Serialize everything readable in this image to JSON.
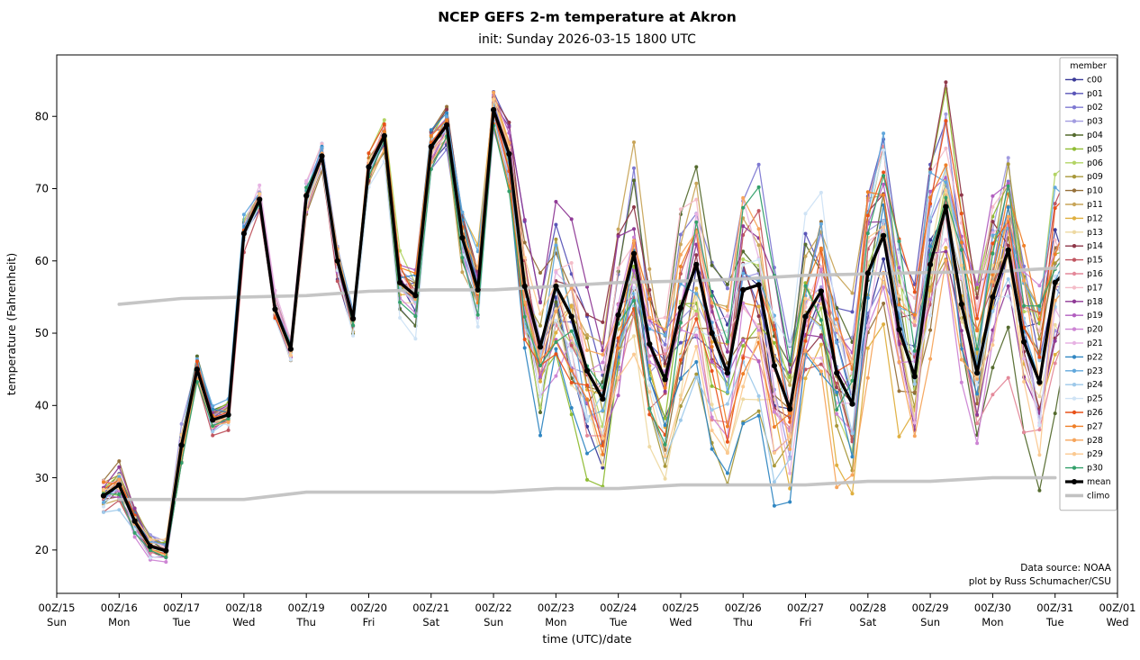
{
  "chart_data": {
    "type": "line",
    "title": "NCEP GEFS 2-m temperature at Akron",
    "subtitle": "init: Sunday 2026-03-15 1800 UTC",
    "xlabel": "time (UTC)/date",
    "ylabel": "temperature (Fahrenheit)",
    "ylim": [
      14,
      88.5
    ],
    "yticks": [
      20,
      30,
      40,
      50,
      60,
      70,
      80
    ],
    "x_axis_range_hours": [
      0,
      408
    ],
    "x_start_hour": 18,
    "x_step_hours": 6,
    "xticks": [
      {
        "top": "00Z/15",
        "bottom": "Sun"
      },
      {
        "top": "00Z/16",
        "bottom": "Mon"
      },
      {
        "top": "00Z/17",
        "bottom": "Tue"
      },
      {
        "top": "00Z/18",
        "bottom": "Wed"
      },
      {
        "top": "00Z/19",
        "bottom": "Thu"
      },
      {
        "top": "00Z/20",
        "bottom": "Fri"
      },
      {
        "top": "00Z/21",
        "bottom": "Sat"
      },
      {
        "top": "00Z/22",
        "bottom": "Sun"
      },
      {
        "top": "00Z/23",
        "bottom": "Mon"
      },
      {
        "top": "00Z/24",
        "bottom": "Tue"
      },
      {
        "top": "00Z/25",
        "bottom": "Wed"
      },
      {
        "top": "00Z/26",
        "bottom": "Thu"
      },
      {
        "top": "00Z/27",
        "bottom": "Fri"
      },
      {
        "top": "00Z/28",
        "bottom": "Sat"
      },
      {
        "top": "00Z/29",
        "bottom": "Sun"
      },
      {
        "top": "00Z/30",
        "bottom": "Mon"
      },
      {
        "top": "00Z/31",
        "bottom": "Tue"
      },
      {
        "top": "00Z/01",
        "bottom": "Wed"
      }
    ],
    "legend_title": "member",
    "annotations": [
      "Data source: NOAA",
      "plot by Russ Schumacher/CSU"
    ],
    "mean": {
      "name": "mean",
      "color": "#000000",
      "values": [
        27.5,
        29.0,
        24.0,
        20.5,
        19.9,
        34.5,
        45.0,
        38.0,
        38.7,
        63.8,
        68.5,
        53.3,
        47.8,
        69.0,
        74.5,
        60.0,
        52.0,
        73.0,
        77.3,
        57.0,
        55.2,
        75.8,
        78.8,
        63.2,
        56.0,
        80.9,
        74.8,
        56.5,
        48.1,
        56.5,
        52.3,
        44.8,
        40.9,
        52.5,
        61.0,
        48.5,
        43.6,
        53.5,
        59.5,
        50.0,
        44.5,
        56.0,
        56.7,
        45.5,
        39.5,
        52.3,
        55.8,
        44.5,
        40.2,
        58.3,
        63.5,
        50.5,
        44.0,
        59.5,
        67.5,
        54.0,
        44.5,
        55.0,
        61.5,
        48.8,
        43.2,
        57.0,
        59.2,
        44.5
      ]
    },
    "climo": {
      "name": "climo",
      "color": "#c2c2c2",
      "day_hours": [
        24,
        48,
        72,
        96,
        120,
        144,
        168,
        192,
        216,
        240,
        264,
        288,
        312,
        336,
        360,
        384
      ],
      "upper": [
        54.0,
        54.8,
        55.0,
        55.2,
        55.8,
        56.0,
        56.0,
        56.5,
        57.0,
        57.2,
        57.5,
        58.0,
        58.2,
        58.4,
        58.5,
        59.0
      ],
      "lower": [
        27.0,
        27.0,
        27.0,
        28.0,
        28.0,
        28.0,
        28.0,
        28.5,
        28.5,
        29.0,
        29.0,
        29.0,
        29.5,
        29.5,
        30.0,
        30.0
      ]
    },
    "spread": [
      2.2,
      2.2,
      2.0,
      1.4,
      1.2,
      1.8,
      1.6,
      1.5,
      1.4,
      1.4,
      1.4,
      1.4,
      1.4,
      1.5,
      1.5,
      1.8,
      1.8,
      1.8,
      1.8,
      2.6,
      3.0,
      2.6,
      2.0,
      3.2,
      3.8,
      2.0,
      3.5,
      6.0,
      7.0,
      8.5,
      8.5,
      7.5,
      7.0,
      8.5,
      9.0,
      8.0,
      7.5,
      9.0,
      9.0,
      8.5,
      8.0,
      9.5,
      9.5,
      9.0,
      8.5,
      10.0,
      10.0,
      9.5,
      9.0,
      10.0,
      10.0,
      9.5,
      9.0,
      9.5,
      9.0,
      8.5,
      8.5,
      9.5,
      9.5,
      9.0,
      8.5,
      9.0,
      9.0,
      9.0
    ],
    "members": [
      {
        "name": "c00",
        "color": "#3a3a98"
      },
      {
        "name": "p01",
        "color": "#5a55b8"
      },
      {
        "name": "p02",
        "color": "#7e79d2"
      },
      {
        "name": "p03",
        "color": "#a29ce0"
      },
      {
        "name": "p04",
        "color": "#556b2f"
      },
      {
        "name": "p05",
        "color": "#8fbc33"
      },
      {
        "name": "p06",
        "color": "#b3d465"
      },
      {
        "name": "p09",
        "color": "#a8983a"
      },
      {
        "name": "p10",
        "color": "#96713a"
      },
      {
        "name": "p11",
        "color": "#c8a55a"
      },
      {
        "name": "p12",
        "color": "#dfaf3f"
      },
      {
        "name": "p13",
        "color": "#eed9a2"
      },
      {
        "name": "p14",
        "color": "#8e3748"
      },
      {
        "name": "p15",
        "color": "#c05560"
      },
      {
        "name": "p16",
        "color": "#e4899a"
      },
      {
        "name": "p17",
        "color": "#f4bcc8"
      },
      {
        "name": "p18",
        "color": "#8f3a96"
      },
      {
        "name": "p19",
        "color": "#b25fc0"
      },
      {
        "name": "p20",
        "color": "#cd85d4"
      },
      {
        "name": "p21",
        "color": "#e7b3e3"
      },
      {
        "name": "p22",
        "color": "#3187c2"
      },
      {
        "name": "p23",
        "color": "#62a8dc"
      },
      {
        "name": "p24",
        "color": "#9ec9ea"
      },
      {
        "name": "p25",
        "color": "#cfe3f5"
      },
      {
        "name": "p26",
        "color": "#e8521a"
      },
      {
        "name": "p27",
        "color": "#ef7f28"
      },
      {
        "name": "p28",
        "color": "#f6a55c"
      },
      {
        "name": "p29",
        "color": "#fbc991"
      },
      {
        "name": "p30",
        "color": "#33a06a"
      }
    ]
  }
}
